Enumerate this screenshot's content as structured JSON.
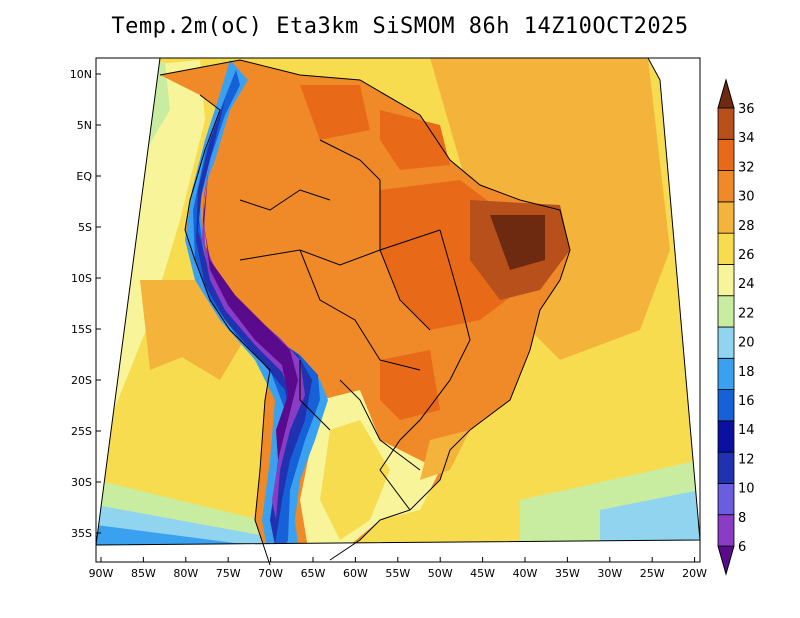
{
  "title": "Temp.2m(oC) Eta3km SiSMOM 86h 14Z10OCT2025",
  "lat_labels": [
    "10N",
    "5N",
    "EQ",
    "5S",
    "10S",
    "15S",
    "20S",
    "25S",
    "30S",
    "35S"
  ],
  "lon_labels": [
    "90W",
    "85W",
    "80W",
    "75W",
    "70W",
    "65W",
    "60W",
    "55W",
    "50W",
    "45W",
    "40W",
    "35W",
    "30W",
    "25W",
    "20W"
  ],
  "colorbar": {
    "labels": [
      "6",
      "8",
      "10",
      "12",
      "14",
      "16",
      "18",
      "20",
      "22",
      "24",
      "26",
      "28",
      "30",
      "32",
      "34",
      "36"
    ],
    "colors": [
      "#5a0a8c",
      "#8b3cc4",
      "#6a5de0",
      "#2032b0",
      "#0a10a0",
      "#1660d8",
      "#3aa0f0",
      "#90d4f0",
      "#c8eca0",
      "#f8f49a",
      "#f8dc50",
      "#f4b43c",
      "#f08a28",
      "#e86a18",
      "#b8501c",
      "#6e2a10"
    ],
    "min": 6,
    "max": 36
  }
}
